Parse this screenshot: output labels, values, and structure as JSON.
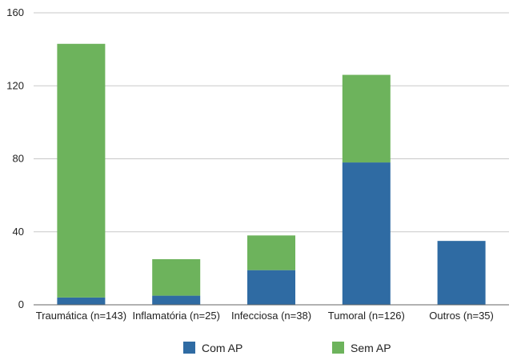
{
  "chart_data": {
    "type": "bar",
    "stacked": true,
    "categories": [
      "Traumática (n=143)",
      "Inflamatória (n=25)",
      "Infecciosa (n=38)",
      "Tumoral (n=126)",
      "Outros (n=35)"
    ],
    "series": [
      {
        "name": "Com AP",
        "color": "#2f6ba3",
        "values": [
          4,
          5,
          19,
          78,
          35
        ]
      },
      {
        "name": "Sem AP",
        "color": "#6db35c",
        "values": [
          139,
          20,
          19,
          48,
          0
        ]
      }
    ],
    "ylim": [
      0,
      160
    ],
    "yticks": [
      0,
      40,
      80,
      120,
      160
    ],
    "grid": true,
    "legend": "bottom"
  }
}
